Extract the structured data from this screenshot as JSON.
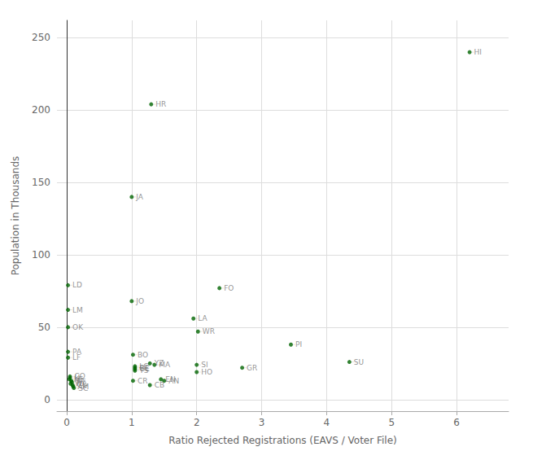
{
  "chart_data": {
    "type": "scatter",
    "xlabel": "Ratio Rejected Registrations (EAVS / Voter File)",
    "ylabel": "Population in Thousands",
    "labels": [
      "HI",
      "HR",
      "JA",
      "FO",
      "LD",
      "JO",
      "LM",
      "OK",
      "LA",
      "WR",
      "PI",
      "PA",
      "LF",
      "SU",
      "BO",
      "YZ",
      "MA",
      "SI",
      "GR",
      "HO",
      "LC",
      "BE",
      "GE",
      "TS",
      "CR",
      "CB",
      "EN",
      "AN",
      "U",
      "TI",
      "AT",
      "WA",
      "CL",
      "AM",
      "SC",
      "KE",
      "CO"
    ],
    "x": [
      6.2,
      1.3,
      1.0,
      2.35,
      0.02,
      1.0,
      0.02,
      0.02,
      1.95,
      2.02,
      3.45,
      0.02,
      0.02,
      4.35,
      1.02,
      1.28,
      1.35,
      2.0,
      2.7,
      2.0,
      1.05,
      1.05,
      1.05,
      1.05,
      1.02,
      1.28,
      1.45,
      1.5,
      0.05,
      0.07,
      0.08,
      0.06,
      0.09,
      0.1,
      0.11,
      0.04,
      0.05
    ],
    "values": [
      240,
      204,
      140,
      77,
      79,
      68,
      62,
      50,
      56,
      47,
      38,
      33,
      29,
      26,
      31,
      25,
      24,
      24,
      22,
      19,
      23,
      22,
      21,
      20,
      13,
      10,
      14,
      13,
      15,
      13,
      12,
      11,
      10,
      9,
      8,
      14,
      16
    ],
    "color": "#006400",
    "xlim": [
      -0.15,
      6.8
    ],
    "ylim": [
      -8,
      262
    ],
    "xticks": [
      0,
      1,
      2,
      3,
      4,
      5,
      6
    ],
    "yticks": [
      0,
      50,
      100,
      150,
      200,
      250
    ],
    "grid": true
  }
}
